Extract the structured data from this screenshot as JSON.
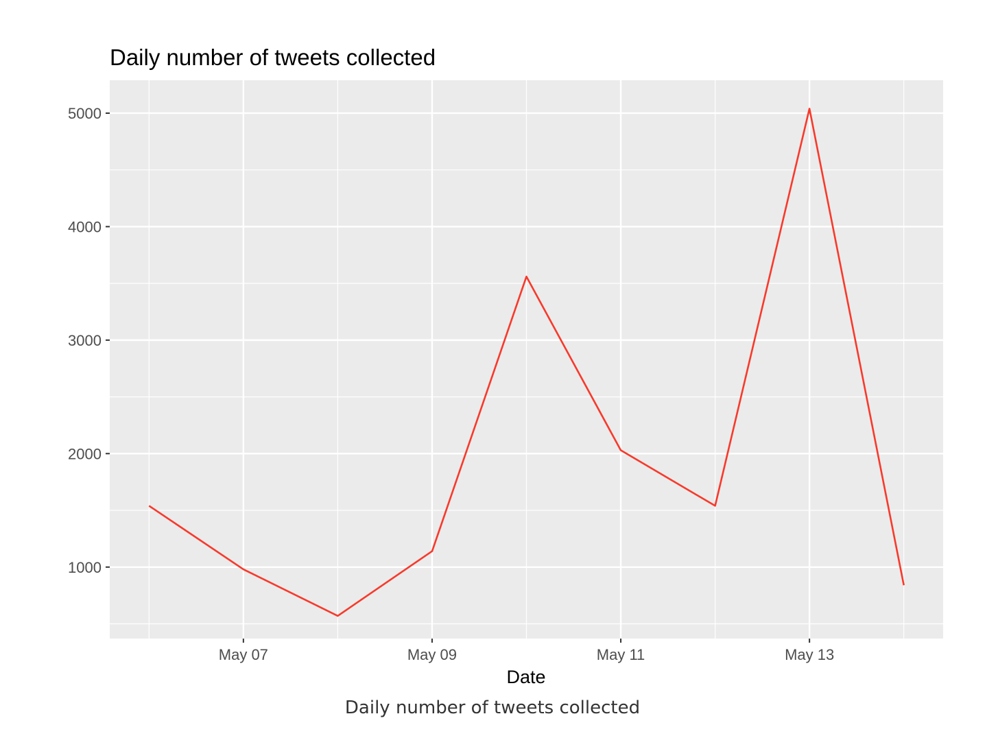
{
  "chart_data": {
    "type": "line",
    "title": "Daily number of tweets collected",
    "xlabel": "Date",
    "ylabel": "",
    "x": [
      "2020-05-06",
      "2020-05-07",
      "2020-05-08",
      "2020-05-09",
      "2020-05-10",
      "2020-05-11",
      "2020-05-12",
      "2020-05-13",
      "2020-05-14"
    ],
    "x_tick_labels": [
      "May 07",
      "May 09",
      "May 11",
      "May 13"
    ],
    "x_tick_dates": [
      "2020-05-07",
      "2020-05-09",
      "2020-05-11",
      "2020-05-13"
    ],
    "xlim": [
      "2020-05-05T14:00",
      "2020-05-14T10:00"
    ],
    "series": [
      {
        "values": [
          1540,
          980,
          570,
          1140,
          3560,
          2030,
          1540,
          5040,
          840
        ]
      }
    ],
    "y_ticks": [
      1000,
      2000,
      3000,
      4000,
      5000
    ],
    "ylim": [
      370,
      5290
    ],
    "line_color": "#f8392b",
    "panel_background": "#ebebeb",
    "grid": true
  },
  "caption": "Daily number of tweets collected"
}
